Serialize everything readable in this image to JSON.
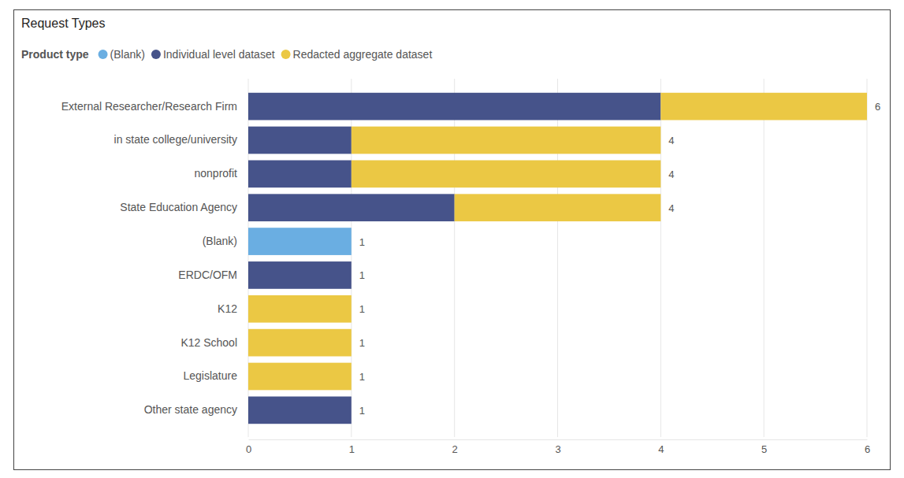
{
  "chart_data": {
    "type": "bar",
    "title": "Request Types",
    "legend_title": "Product type",
    "orientation": "horizontal",
    "stacked": true,
    "grid": true,
    "legend": "top-left",
    "data_labels": true,
    "categories": [
      "External Researcher/Research Firm",
      "in state college/university",
      "nonprofit",
      "State Education Agency",
      "(Blank)",
      "ERDC/OFM",
      "K12",
      "K12 School",
      "Legislature",
      "Other state agency"
    ],
    "series": [
      {
        "name": "(Blank)",
        "color": "#6aaee2",
        "values": [
          0,
          0,
          0,
          0,
          1,
          0,
          0,
          0,
          0,
          0
        ]
      },
      {
        "name": "Individual level dataset",
        "color": "#46538a",
        "values": [
          4,
          1,
          1,
          2,
          0,
          1,
          0,
          0,
          0,
          1
        ]
      },
      {
        "name": "Redacted aggregate dataset",
        "color": "#ebc844",
        "values": [
          2,
          3,
          3,
          2,
          0,
          0,
          1,
          1,
          1,
          0
        ]
      }
    ],
    "totals": [
      6,
      4,
      4,
      4,
      1,
      1,
      1,
      1,
      1,
      1
    ],
    "xlim": [
      0,
      6
    ],
    "xticks": [
      0,
      1,
      2,
      3,
      4,
      5,
      6
    ]
  }
}
